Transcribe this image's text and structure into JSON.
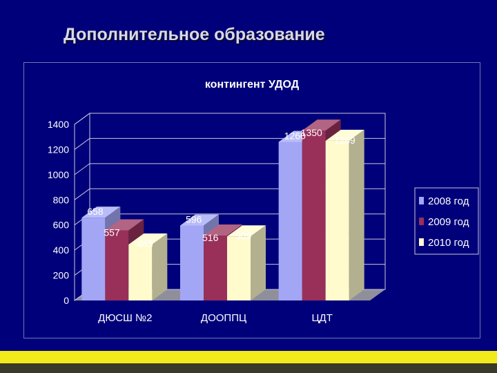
{
  "slide": {
    "title": "Дополнительное образование"
  },
  "colors": {
    "background": "#00007a",
    "series": [
      "#a3a6f5",
      "#98305a",
      "#fffbcc"
    ]
  },
  "chart_data": {
    "type": "bar",
    "title": "контингент УДОД",
    "categories": [
      "ДЮСШ №2",
      "ДООППЦ",
      "ЦДТ"
    ],
    "series": [
      {
        "name": "2008 год",
        "values": [
          658,
          596,
          1260
        ]
      },
      {
        "name": "2009 год",
        "values": [
          557,
          516,
          1350
        ]
      },
      {
        "name": "2010 год",
        "values": [
          445,
          509,
          1269
        ]
      }
    ],
    "ylim": [
      0,
      1400
    ],
    "yticks": [
      0,
      200,
      400,
      600,
      800,
      1000,
      1200,
      1400
    ],
    "grid": true,
    "legend": "right",
    "style": "3d"
  }
}
